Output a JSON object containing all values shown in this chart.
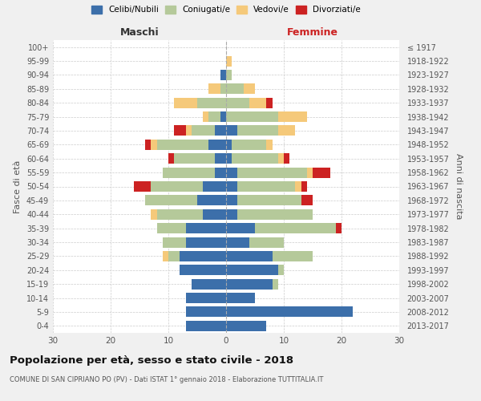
{
  "age_groups": [
    "0-4",
    "5-9",
    "10-14",
    "15-19",
    "20-24",
    "25-29",
    "30-34",
    "35-39",
    "40-44",
    "45-49",
    "50-54",
    "55-59",
    "60-64",
    "65-69",
    "70-74",
    "75-79",
    "80-84",
    "85-89",
    "90-94",
    "95-99",
    "100+"
  ],
  "birth_years": [
    "2013-2017",
    "2008-2012",
    "2003-2007",
    "1998-2002",
    "1993-1997",
    "1988-1992",
    "1983-1987",
    "1978-1982",
    "1973-1977",
    "1968-1972",
    "1963-1967",
    "1958-1962",
    "1953-1957",
    "1948-1952",
    "1943-1947",
    "1938-1942",
    "1933-1937",
    "1928-1932",
    "1923-1927",
    "1918-1922",
    "≤ 1917"
  ],
  "male": {
    "celibi": [
      7,
      7,
      7,
      6,
      8,
      8,
      7,
      7,
      4,
      5,
      4,
      2,
      2,
      3,
      2,
      1,
      0,
      0,
      1,
      0,
      0
    ],
    "coniugati": [
      0,
      0,
      0,
      0,
      0,
      2,
      4,
      5,
      8,
      9,
      9,
      9,
      7,
      9,
      4,
      2,
      5,
      1,
      0,
      0,
      0
    ],
    "vedovi": [
      0,
      0,
      0,
      0,
      0,
      1,
      0,
      0,
      1,
      0,
      0,
      0,
      0,
      1,
      1,
      1,
      4,
      2,
      0,
      0,
      0
    ],
    "divorziati": [
      0,
      0,
      0,
      0,
      0,
      0,
      0,
      0,
      0,
      0,
      3,
      0,
      1,
      1,
      2,
      0,
      0,
      0,
      0,
      0,
      0
    ]
  },
  "female": {
    "nubili": [
      7,
      22,
      5,
      8,
      9,
      8,
      4,
      5,
      2,
      2,
      2,
      2,
      1,
      1,
      2,
      0,
      0,
      0,
      0,
      0,
      0
    ],
    "coniugate": [
      0,
      0,
      0,
      1,
      1,
      7,
      6,
      14,
      13,
      11,
      10,
      12,
      8,
      6,
      7,
      9,
      4,
      3,
      1,
      0,
      0
    ],
    "vedove": [
      0,
      0,
      0,
      0,
      0,
      0,
      0,
      0,
      0,
      0,
      1,
      1,
      1,
      1,
      3,
      5,
      3,
      2,
      0,
      1,
      0
    ],
    "divorziate": [
      0,
      0,
      0,
      0,
      0,
      0,
      0,
      1,
      0,
      2,
      1,
      3,
      1,
      0,
      0,
      0,
      1,
      0,
      0,
      0,
      0
    ]
  },
  "colors": {
    "celibi_nubili": "#3c6faa",
    "coniugati": "#b5c99a",
    "vedovi": "#f5c97a",
    "divorziati": "#cc2222"
  },
  "title": "Popolazione per età, sesso e stato civile - 2018",
  "subtitle": "COMUNE DI SAN CIPRIANO PO (PV) - Dati ISTAT 1° gennaio 2018 - Elaborazione TUTTITALIA.IT",
  "xlabel_left": "Maschi",
  "xlabel_right": "Femmine",
  "ylabel": "Fasce di età",
  "ylabel_right": "Anni di nascita",
  "xlim": 30,
  "background_color": "#f0f0f0",
  "plot_bg": "#ffffff"
}
